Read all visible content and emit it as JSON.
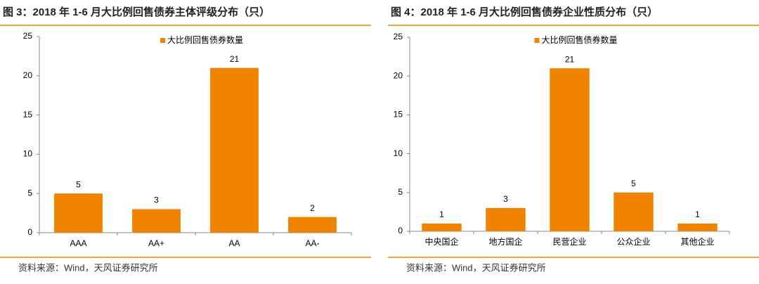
{
  "chart_data": [
    {
      "type": "bar",
      "title": "图 3：2018 年 1-6 月大比例回售债券主体评级分布（只）",
      "categories": [
        "AAA",
        "AA+",
        "AA",
        "AA-"
      ],
      "series": [
        {
          "name": "大比例回售债券数量",
          "color": "#f08300",
          "values": [
            5,
            3,
            21,
            2
          ]
        }
      ],
      "ylim": [
        0,
        25
      ],
      "yticks": [
        0,
        5,
        10,
        15,
        20,
        25
      ],
      "source": "资料来源：Wind，天风证券研究所"
    },
    {
      "type": "bar",
      "title": "图 4：2018 年 1-6 月大比例回售债券企业性质分布（只）",
      "categories": [
        "中央国企",
        "地方国企",
        "民营企业",
        "公众企业",
        "其他企业"
      ],
      "series": [
        {
          "name": "大比例回售债券数量",
          "color": "#f08300",
          "values": [
            1,
            3,
            21,
            5,
            1
          ]
        }
      ],
      "ylim": [
        0,
        25
      ],
      "yticks": [
        0,
        5,
        10,
        15,
        20,
        25
      ],
      "source": "资料来源：Wind，天风证券研究所"
    }
  ]
}
